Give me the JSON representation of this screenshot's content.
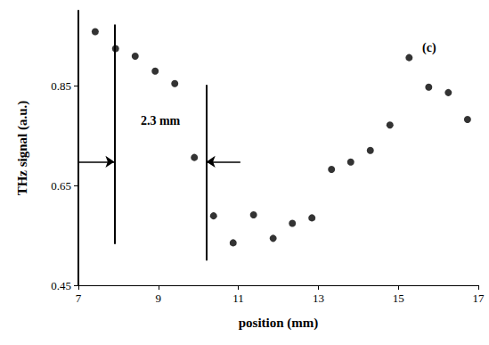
{
  "chart_data": {
    "type": "scatter",
    "panel_label": "(c)",
    "x_label": "position (mm)",
    "y_label": "THz signal (a.u.)",
    "x": [
      7.42,
      7.93,
      8.42,
      8.92,
      9.41,
      9.9,
      10.38,
      10.87,
      11.38,
      11.87,
      12.35,
      12.84,
      13.33,
      13.81,
      14.3,
      14.79,
      15.27,
      15.76,
      16.25,
      16.73
    ],
    "values": [
      0.958,
      0.924,
      0.909,
      0.879,
      0.854,
      0.706,
      0.589,
      0.535,
      0.591,
      0.544,
      0.574,
      0.585,
      0.682,
      0.697,
      0.72,
      0.771,
      0.906,
      0.847,
      0.836,
      0.782
    ],
    "color": "#000000",
    "marker": "circle",
    "xlim": [
      7,
      17
    ],
    "xticks": [
      7,
      9,
      11,
      13,
      15,
      17
    ],
    "ylim": [
      0.45,
      1.0
    ],
    "yticks": [
      0.45,
      0.65,
      0.85
    ],
    "grid": false,
    "annotations": [
      {
        "text": "2.3 mm",
        "x_from": 7.9,
        "x_to": 10.2
      }
    ]
  }
}
